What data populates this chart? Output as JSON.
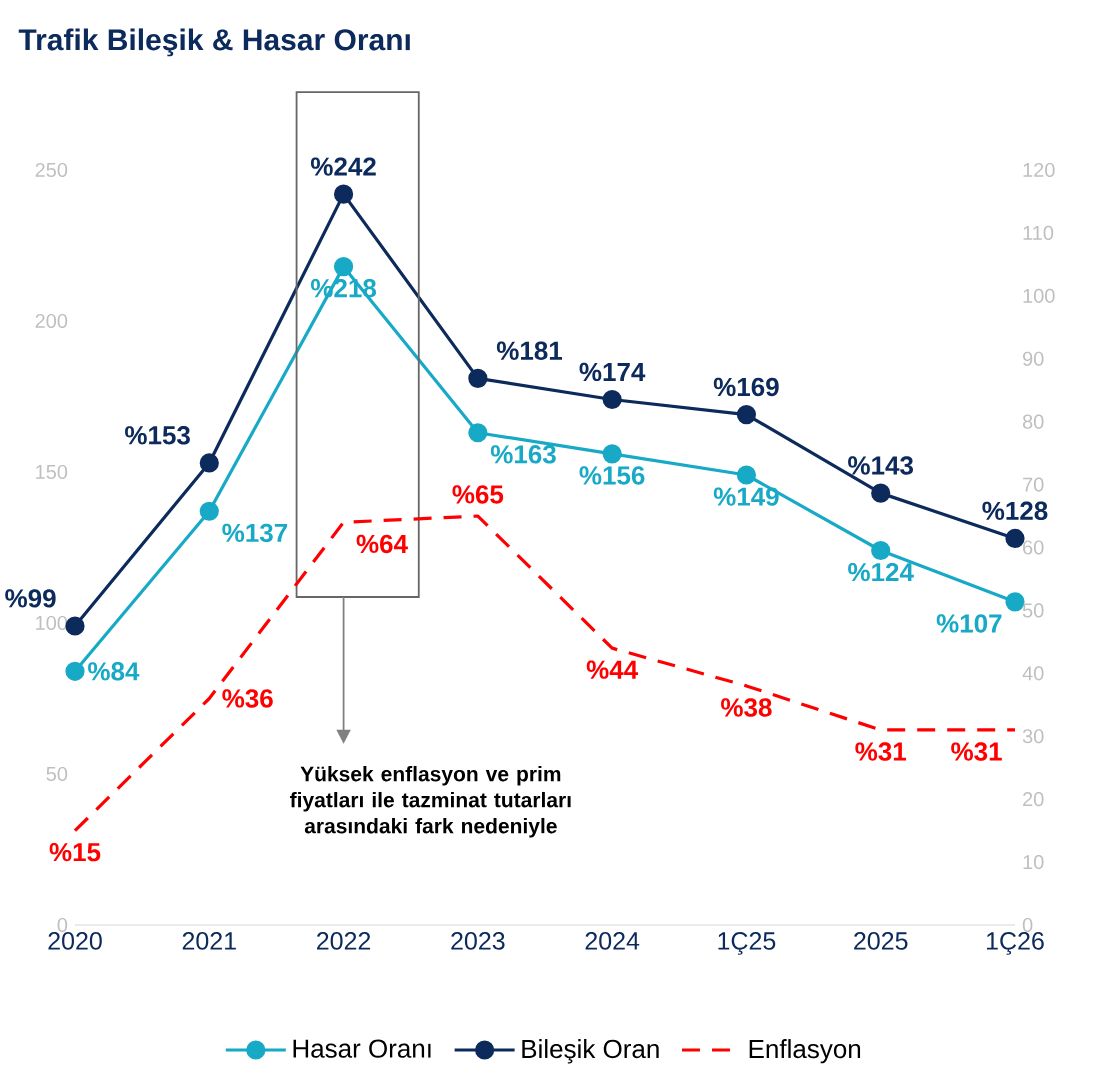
{
  "chart_data": {
    "type": "line",
    "title": "Trafik Bileşik & Hasar Oranı",
    "categories": [
      "2020",
      "2021",
      "2022",
      "2023",
      "2024",
      "1Ç25",
      "2025",
      "1Ç26"
    ],
    "series": [
      {
        "name": "Hasar Oranı",
        "color": "#17a9c6",
        "marker": "circle",
        "line_style": "solid",
        "values": [
          84,
          137,
          218,
          163,
          156,
          149,
          124,
          107
        ],
        "value_labels": [
          "%84",
          "%137",
          "%218",
          "%163",
          "%156",
          "%149",
          "%124",
          "%107"
        ]
      },
      {
        "name": "Bileşik Oran",
        "color": "#0c2a5b",
        "marker": "circle",
        "line_style": "solid",
        "values": [
          99,
          153,
          242,
          181,
          174,
          169,
          143,
          128
        ],
        "value_labels": [
          "%99",
          "%153",
          "%242",
          "%181",
          "%174",
          "%169",
          "%143",
          "%128"
        ]
      },
      {
        "name": "Enflasyon",
        "color": "#ff0000",
        "marker": "none",
        "line_style": "dashed",
        "axis": "y2",
        "values": [
          15,
          36,
          64,
          65,
          44,
          38,
          31,
          31
        ],
        "value_labels": [
          "%15",
          "%36",
          "%64",
          "%65",
          "%44",
          "%38",
          "%31",
          "%31"
        ]
      }
    ],
    "ylim": [
      0,
      250
    ],
    "yticks": [
      0,
      50,
      100,
      150,
      200,
      250
    ],
    "y2lim": [
      0,
      120
    ],
    "y2ticks": [
      0,
      10,
      20,
      30,
      40,
      50,
      60,
      70,
      80,
      90,
      100,
      110,
      120
    ],
    "legend": "bottom",
    "grid": false,
    "annotations": [
      "Yüksek enflasyon ve prim fiyatları ile tazminat tutarları arasındaki fark nedeniyle"
    ]
  }
}
